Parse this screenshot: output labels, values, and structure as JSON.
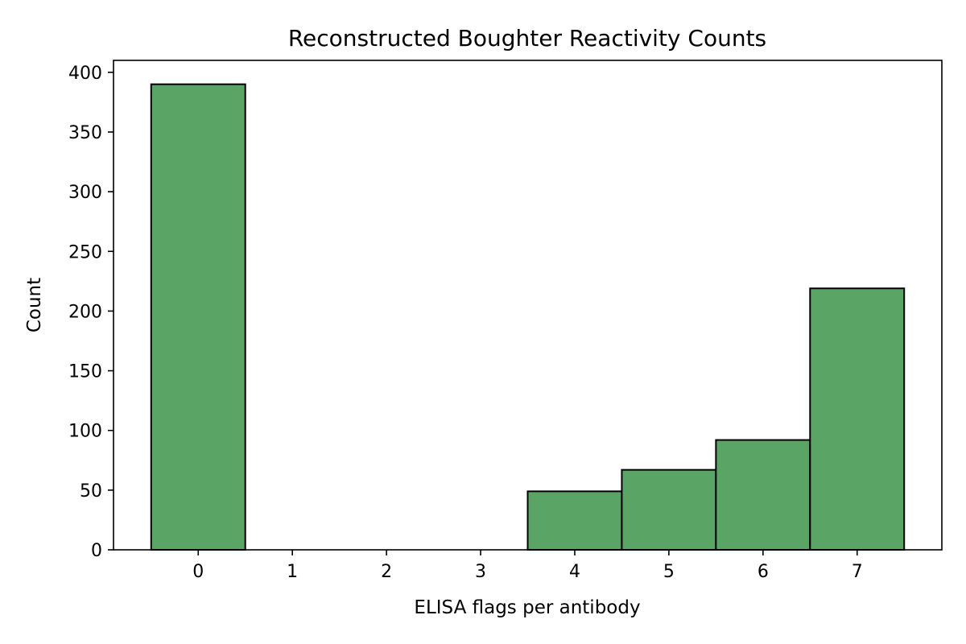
{
  "chart_data": {
    "type": "bar",
    "title": "Reconstructed Boughter Reactivity Counts",
    "xlabel": "ELISA flags per antibody",
    "ylabel": "Count",
    "categories": [
      "0",
      "1",
      "2",
      "3",
      "4",
      "5",
      "6",
      "7"
    ],
    "values": [
      390,
      0,
      0,
      0,
      49,
      67,
      92,
      219
    ],
    "xlim": [
      -0.9,
      7.9
    ],
    "ylim": [
      0,
      410
    ],
    "yticks": [
      0,
      50,
      100,
      150,
      200,
      250,
      300,
      350,
      400
    ],
    "grid": false,
    "bar_color": "#5aa566",
    "edge_color": "#000000"
  }
}
